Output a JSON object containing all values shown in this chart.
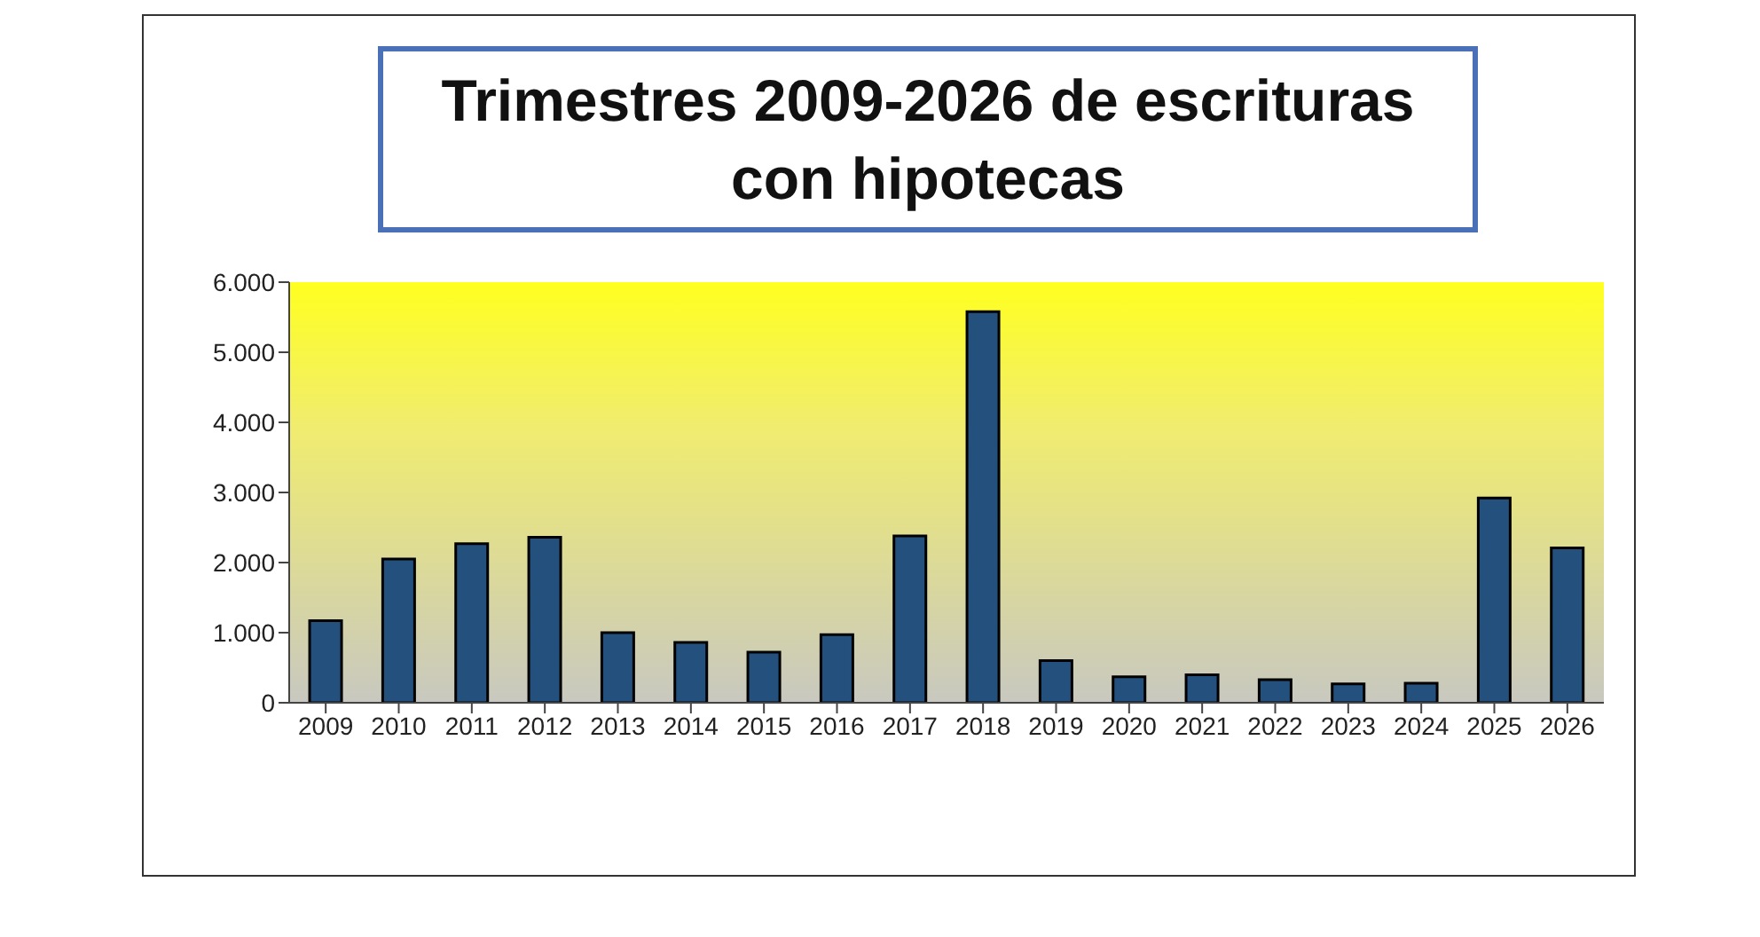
{
  "chart_data": {
    "type": "bar",
    "title": "Trimestres 2009-2026 de escrituras con hipotecas",
    "categories": [
      "2009",
      "2010",
      "2011",
      "2012",
      "2013",
      "2014",
      "2015",
      "2016",
      "2017",
      "2018",
      "2019",
      "2020",
      "2021",
      "2022",
      "2023",
      "2024",
      "2025",
      "2026"
    ],
    "values": [
      1170,
      2050,
      2270,
      2360,
      1000,
      860,
      720,
      970,
      2380,
      5580,
      600,
      370,
      400,
      330,
      270,
      280,
      2920,
      2210
    ],
    "color": "#24507e",
    "ylim": [
      0,
      6000
    ],
    "yticks": [
      0,
      {
        "value": 1000,
        "label": "1.000"
      },
      {
        "value": 2000,
        "label": "2.000"
      },
      {
        "value": 3000,
        "label": "3.000"
      },
      {
        "value": 4000,
        "label": "4.000"
      },
      {
        "value": 5000,
        "label": "5.000"
      },
      {
        "value": 6000,
        "label": "6.000"
      }
    ],
    "grid": false,
    "legend": false
  }
}
